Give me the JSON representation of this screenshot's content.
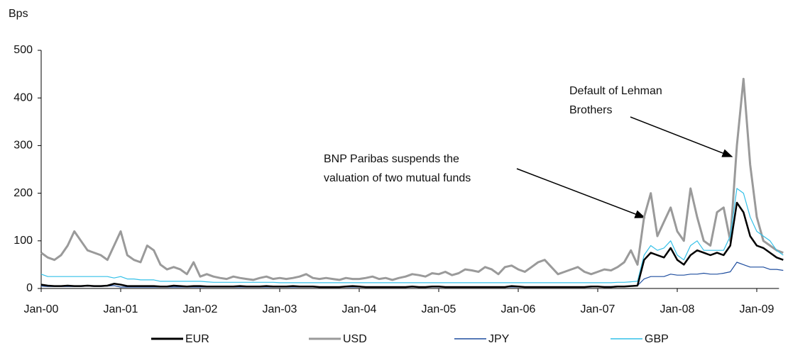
{
  "chart_data": {
    "type": "line",
    "y_label": "Bps",
    "categories": [
      "Jan-00",
      null,
      null,
      null,
      null,
      null,
      null,
      null,
      null,
      null,
      null,
      null,
      "Jan-01",
      null,
      null,
      null,
      null,
      null,
      null,
      null,
      null,
      null,
      null,
      null,
      "Jan-02",
      null,
      null,
      null,
      null,
      null,
      null,
      null,
      null,
      null,
      null,
      null,
      "Jan-03",
      null,
      null,
      null,
      null,
      null,
      null,
      null,
      null,
      null,
      null,
      null,
      "Jan-04",
      null,
      null,
      null,
      null,
      null,
      null,
      null,
      null,
      null,
      null,
      null,
      "Jan-05",
      null,
      null,
      null,
      null,
      null,
      null,
      null,
      null,
      null,
      null,
      null,
      "Jan-06",
      null,
      null,
      null,
      null,
      null,
      null,
      null,
      null,
      null,
      null,
      null,
      "Jan-07",
      null,
      null,
      null,
      null,
      null,
      null,
      null,
      null,
      null,
      null,
      null,
      "Jan-08",
      null,
      null,
      null,
      null,
      null,
      null,
      null,
      null,
      null,
      null,
      null,
      "Jan-09",
      null,
      null,
      null,
      null
    ],
    "ylim": [
      0,
      500
    ],
    "yticks": [
      0,
      100,
      200,
      300,
      400,
      500
    ],
    "annotations": [
      {
        "lines": [
          "BNP Paribas suspends the",
          "valuation of two mutual funds"
        ]
      },
      {
        "lines": [
          "Default of Lehman",
          "Brothers"
        ]
      }
    ],
    "series": [
      {
        "name": "USD",
        "color": "#9a9a9a",
        "values": [
          75,
          65,
          60,
          70,
          90,
          120,
          100,
          80,
          75,
          70,
          60,
          90,
          120,
          70,
          60,
          55,
          90,
          80,
          50,
          40,
          45,
          40,
          30,
          55,
          25,
          30,
          25,
          22,
          20,
          25,
          22,
          20,
          18,
          22,
          25,
          20,
          22,
          20,
          22,
          25,
          30,
          22,
          20,
          22,
          20,
          18,
          22,
          20,
          20,
          22,
          25,
          20,
          22,
          18,
          22,
          25,
          30,
          28,
          25,
          32,
          30,
          35,
          28,
          32,
          40,
          38,
          35,
          45,
          40,
          30,
          45,
          48,
          40,
          35,
          45,
          55,
          60,
          45,
          30,
          35,
          40,
          45,
          35,
          30,
          35,
          40,
          38,
          45,
          55,
          80,
          50,
          150,
          200,
          110,
          140,
          170,
          120,
          100,
          210,
          150,
          100,
          90,
          160,
          170,
          100,
          300,
          440,
          260,
          150,
          100,
          90,
          80,
          75
        ]
      },
      {
        "name": "GBP",
        "color": "#33c0e8",
        "values": [
          30,
          25,
          25,
          25,
          25,
          25,
          25,
          25,
          25,
          25,
          25,
          22,
          25,
          20,
          20,
          18,
          18,
          18,
          15,
          15,
          15,
          15,
          15,
          15,
          15,
          14,
          13,
          13,
          13,
          13,
          13,
          13,
          13,
          13,
          13,
          13,
          12,
          12,
          12,
          12,
          12,
          12,
          12,
          12,
          12,
          12,
          12,
          12,
          12,
          12,
          12,
          12,
          12,
          12,
          12,
          12,
          12,
          12,
          12,
          12,
          12,
          12,
          12,
          12,
          12,
          12,
          12,
          12,
          12,
          12,
          12,
          12,
          12,
          12,
          12,
          12,
          12,
          12,
          12,
          12,
          12,
          12,
          12,
          12,
          12,
          12,
          12,
          13,
          13,
          14,
          15,
          70,
          90,
          80,
          85,
          100,
          70,
          60,
          90,
          100,
          80,
          80,
          80,
          80,
          110,
          210,
          200,
          150,
          120,
          110,
          100,
          80,
          70
        ]
      },
      {
        "name": "JPY",
        "color": "#1f4e9f",
        "values": [
          5,
          4,
          4,
          4,
          4,
          4,
          4,
          5,
          4,
          4,
          5,
          6,
          3,
          3,
          3,
          3,
          3,
          3,
          3,
          3,
          3,
          3,
          3,
          3,
          3,
          3,
          3,
          3,
          3,
          3,
          3,
          3,
          3,
          3,
          3,
          3,
          3,
          3,
          3,
          3,
          3,
          3,
          3,
          3,
          3,
          3,
          3,
          3,
          3,
          3,
          3,
          3,
          3,
          3,
          3,
          3,
          3,
          3,
          3,
          3,
          3,
          3,
          3,
          3,
          3,
          3,
          3,
          3,
          3,
          3,
          3,
          3,
          3,
          3,
          3,
          3,
          3,
          3,
          3,
          3,
          3,
          3,
          3,
          3,
          4,
          4,
          4,
          5,
          5,
          5,
          6,
          20,
          25,
          25,
          25,
          30,
          28,
          28,
          30,
          30,
          32,
          30,
          30,
          32,
          35,
          55,
          50,
          45,
          45,
          45,
          40,
          40,
          38
        ]
      },
      {
        "name": "EUR",
        "color": "#000000",
        "values": [
          8,
          6,
          5,
          5,
          6,
          5,
          5,
          6,
          5,
          5,
          6,
          10,
          8,
          5,
          5,
          5,
          5,
          5,
          4,
          4,
          6,
          5,
          4,
          5,
          5,
          4,
          4,
          4,
          4,
          4,
          5,
          4,
          4,
          4,
          5,
          4,
          4,
          4,
          5,
          4,
          4,
          4,
          3,
          3,
          3,
          3,
          4,
          5,
          4,
          3,
          3,
          3,
          3,
          3,
          3,
          3,
          4,
          3,
          3,
          4,
          4,
          3,
          3,
          3,
          3,
          3,
          3,
          3,
          3,
          3,
          3,
          5,
          4,
          3,
          3,
          3,
          3,
          3,
          3,
          3,
          3,
          3,
          3,
          4,
          4,
          3,
          3,
          4,
          4,
          5,
          6,
          60,
          75,
          70,
          65,
          85,
          60,
          50,
          70,
          80,
          75,
          70,
          75,
          70,
          90,
          180,
          160,
          110,
          90,
          85,
          75,
          65,
          60
        ]
      }
    ],
    "legend_order": [
      3,
      0,
      2,
      1
    ]
  }
}
